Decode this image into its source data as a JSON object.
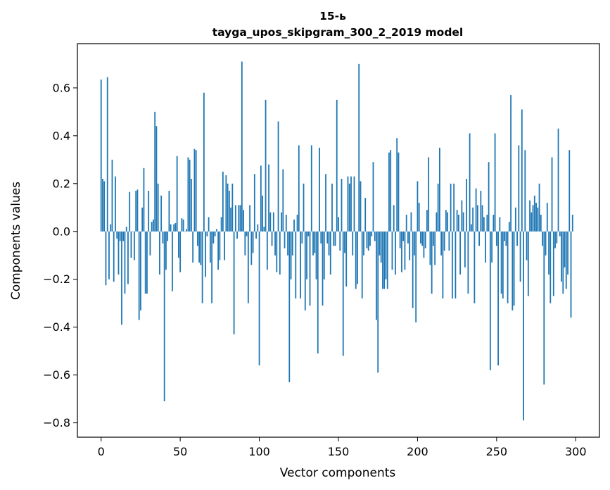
{
  "chart_data": {
    "type": "bar",
    "title": "15-ь",
    "subtitle": "tayga_upos_skipgram_300_2_2019 model",
    "xlabel": "Vector components",
    "ylabel": "Components values",
    "xlim": [
      -15,
      315
    ],
    "ylim": [
      -0.86,
      0.785
    ],
    "xticks": [
      0,
      50,
      100,
      150,
      200,
      250,
      300
    ],
    "yticks": [
      -0.8,
      -0.6,
      -0.4,
      -0.2,
      0.0,
      0.2,
      0.4,
      0.6
    ],
    "ytick_labels": [
      "−0.8",
      "−0.6",
      "−0.4",
      "−0.2",
      "0.0",
      "0.2",
      "0.4",
      "0.6"
    ],
    "xtick_labels": [
      "0",
      "50",
      "100",
      "150",
      "200",
      "250",
      "300"
    ],
    "bar_color": "#1f77b4",
    "grid": false,
    "values": [
      0.635,
      0.22,
      0.21,
      -0.225,
      0.645,
      -0.2,
      0.03,
      0.3,
      -0.21,
      0.23,
      -0.03,
      -0.18,
      -0.04,
      -0.39,
      -0.04,
      -0.26,
      0.02,
      -0.22,
      0.165,
      -0.11,
      0.0,
      -0.12,
      0.17,
      0.175,
      -0.37,
      -0.33,
      0.1,
      0.265,
      -0.26,
      -0.26,
      0.17,
      -0.1,
      0.04,
      0.05,
      0.5,
      0.44,
      0.2,
      -0.18,
      0.15,
      -0.05,
      -0.71,
      -0.16,
      -0.04,
      0.17,
      0.03,
      -0.25,
      0.03,
      0.035,
      0.315,
      -0.11,
      -0.17,
      0.055,
      0.05,
      0.0,
      0.01,
      0.31,
      0.3,
      0.22,
      -0.13,
      0.345,
      0.34,
      -0.06,
      -0.13,
      -0.14,
      -0.3,
      0.58,
      -0.19,
      -0.02,
      0.06,
      -0.13,
      -0.3,
      -0.05,
      -0.02,
      0.01,
      -0.16,
      -0.12,
      0.06,
      0.25,
      -0.12,
      0.235,
      0.2,
      0.17,
      0.1,
      0.2,
      -0.43,
      0.11,
      -0.03,
      0.11,
      0.11,
      0.71,
      0.09,
      -0.1,
      -0.02,
      -0.3,
      0.11,
      -0.14,
      -0.09,
      0.24,
      -0.03,
      0.03,
      -0.56,
      0.275,
      0.15,
      0.02,
      0.55,
      -0.16,
      0.28,
      0.08,
      -0.06,
      0.08,
      -0.1,
      -0.17,
      0.46,
      -0.18,
      0.08,
      0.26,
      -0.07,
      0.07,
      -0.1,
      -0.63,
      -0.2,
      -0.1,
      0.05,
      -0.28,
      0.07,
      0.36,
      -0.28,
      -0.05,
      0.2,
      -0.33,
      -0.2,
      -0.02,
      -0.31,
      0.36,
      -0.1,
      -0.09,
      -0.2,
      -0.51,
      0.35,
      -0.05,
      -0.31,
      -0.2,
      0.24,
      -0.05,
      -0.1,
      -0.18,
      0.2,
      -0.06,
      -0.06,
      0.55,
      0.06,
      -0.08,
      0.22,
      -0.52,
      -0.09,
      -0.23,
      0.23,
      0.2,
      0.23,
      -0.1,
      0.23,
      -0.24,
      -0.22,
      0.7,
      0.21,
      -0.28,
      -0.1,
      0.14,
      -0.07,
      -0.08,
      -0.06,
      -0.02,
      0.29,
      -0.04,
      -0.37,
      -0.59,
      -0.1,
      -0.13,
      -0.24,
      -0.24,
      -0.2,
      -0.24,
      0.33,
      0.34,
      -0.16,
      0.11,
      -0.18,
      0.39,
      0.33,
      -0.07,
      -0.17,
      -0.04,
      -0.16,
      0.07,
      -0.05,
      -0.12,
      0.08,
      -0.32,
      -0.1,
      -0.38,
      0.21,
      0.12,
      -0.05,
      -0.06,
      -0.11,
      -0.07,
      0.09,
      0.31,
      -0.14,
      -0.26,
      -0.06,
      -0.14,
      0.08,
      0.2,
      0.35,
      -0.1,
      -0.28,
      -0.08,
      0.09,
      0.08,
      -0.08,
      0.2,
      -0.28,
      0.2,
      -0.28,
      0.09,
      0.07,
      -0.18,
      0.13,
      0.08,
      -0.15,
      0.22,
      -0.26,
      0.41,
      0.03,
      0.1,
      -0.3,
      0.18,
      0.11,
      -0.06,
      0.17,
      0.11,
      0.06,
      -0.13,
      0.07,
      0.29,
      -0.58,
      -0.13,
      0.07,
      0.41,
      -0.06,
      -0.56,
      0.06,
      -0.26,
      -0.28,
      -0.04,
      -0.06,
      -0.3,
      0.04,
      0.57,
      -0.33,
      -0.31,
      0.1,
      -0.06,
      0.36,
      -0.21,
      0.51,
      -0.79,
      0.34,
      -0.12,
      -0.27,
      0.13,
      0.08,
      0.11,
      0.15,
      0.12,
      0.1,
      0.2,
      0.07,
      -0.06,
      -0.64,
      -0.1,
      0.12,
      -0.18,
      -0.3,
      0.31,
      -0.27,
      -0.07,
      -0.05,
      0.43,
      -0.02,
      -0.21,
      -0.26,
      -0.15,
      -0.24,
      -0.18,
      0.34,
      -0.36,
      0.07
    ]
  }
}
